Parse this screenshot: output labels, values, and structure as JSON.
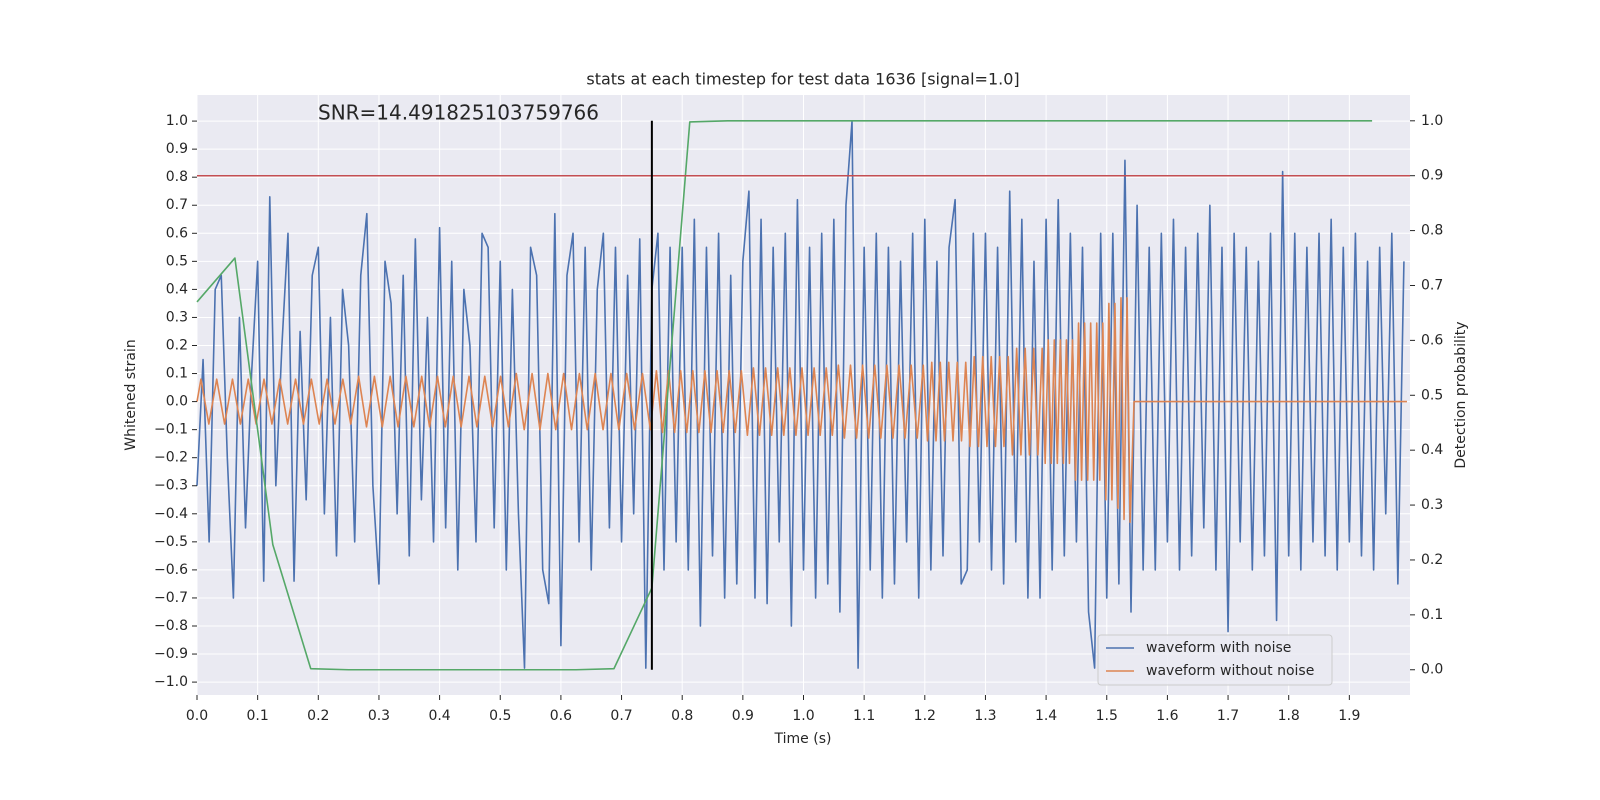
{
  "chart_data": {
    "type": "line",
    "title": "stats at each timestep for test data 1636 [signal=1.0]",
    "annotation": "SNR=14.491825103759766",
    "xlabel": "Time (s)",
    "ylabel": "Whitened strain",
    "y2label": "Detection probability",
    "xlim": [
      0,
      2.0
    ],
    "ylim": [
      -1.046,
      1.093
    ],
    "y2lim": [
      -0.046,
      1.047
    ],
    "xticks": [
      {
        "value": 0,
        "label": "0.0"
      },
      0.1,
      0.2,
      0.3,
      0.4,
      0.5,
      0.6,
      0.7,
      0.8,
      0.9,
      {
        "value": 1,
        "label": "1.0"
      },
      1.1,
      1.2,
      1.3,
      1.4,
      1.5,
      1.6,
      1.7,
      1.8,
      1.9
    ],
    "yticks": [
      {
        "value": -1,
        "label": "−1.0"
      },
      {
        "value": -0.9,
        "label": "−0.9"
      },
      {
        "value": -0.8,
        "label": "−0.8"
      },
      {
        "value": -0.7,
        "label": "−0.7"
      },
      {
        "value": -0.6,
        "label": "−0.6"
      },
      {
        "value": -0.5,
        "label": "−0.5"
      },
      {
        "value": -0.4,
        "label": "−0.4"
      },
      {
        "value": -0.3,
        "label": "−0.3"
      },
      {
        "value": -0.2,
        "label": "−0.2"
      },
      {
        "value": -0.1,
        "label": "−0.1"
      },
      {
        "value": 0,
        "label": "0.0"
      },
      0.1,
      0.2,
      0.3,
      0.4,
      0.5,
      0.6,
      0.7,
      0.8,
      0.9,
      {
        "value": 1,
        "label": "1.0"
      }
    ],
    "y2ticks": [
      {
        "value": 0,
        "label": "0.0"
      },
      0.1,
      0.2,
      0.3,
      0.4,
      0.5,
      0.6,
      0.7,
      0.8,
      0.9,
      {
        "value": 1,
        "label": "1.0"
      }
    ],
    "grid": true,
    "legend": "lower right",
    "series": [
      {
        "name": "waveform with noise",
        "color": "#4c72b0",
        "x": [
          0,
          0.01,
          0.02,
          0.03,
          0.04,
          0.05,
          0.06,
          0.07,
          0.08,
          0.09,
          0.1,
          0.11,
          0.12,
          0.13,
          0.14,
          0.15,
          0.16,
          0.17,
          0.18,
          0.19,
          0.2,
          0.21,
          0.22,
          0.23,
          0.24,
          0.25,
          0.26,
          0.27,
          0.28,
          0.29,
          0.3,
          0.31,
          0.32,
          0.33,
          0.34,
          0.35,
          0.36,
          0.37,
          0.38,
          0.39,
          0.4,
          0.41,
          0.42,
          0.43,
          0.44,
          0.45,
          0.46,
          0.47,
          0.48,
          0.49,
          0.5,
          0.51,
          0.52,
          0.53,
          0.54,
          0.55,
          0.56,
          0.57,
          0.58,
          0.59,
          0.6,
          0.61,
          0.62,
          0.63,
          0.64,
          0.65,
          0.66,
          0.67,
          0.68,
          0.69,
          0.7,
          0.71,
          0.72,
          0.73,
          0.74,
          0.75,
          0.76,
          0.77,
          0.78,
          0.79,
          0.8,
          0.81,
          0.82,
          0.83,
          0.84,
          0.85,
          0.86,
          0.87,
          0.88,
          0.89,
          0.9,
          0.91,
          0.92,
          0.93,
          0.94,
          0.95,
          0.96,
          0.97,
          0.98,
          0.99,
          1.0,
          1.01,
          1.02,
          1.03,
          1.04,
          1.05,
          1.06,
          1.07,
          1.08,
          1.09,
          1.1,
          1.11,
          1.12,
          1.13,
          1.14,
          1.15,
          1.16,
          1.17,
          1.18,
          1.19,
          1.2,
          1.21,
          1.22,
          1.23,
          1.24,
          1.25,
          1.26,
          1.27,
          1.28,
          1.29,
          1.3,
          1.31,
          1.32,
          1.33,
          1.34,
          1.35,
          1.36,
          1.37,
          1.38,
          1.39,
          1.4,
          1.41,
          1.42,
          1.43,
          1.44,
          1.45,
          1.46,
          1.47,
          1.48,
          1.49,
          1.5,
          1.51,
          1.52,
          1.53,
          1.54,
          1.55,
          1.56,
          1.57,
          1.58,
          1.59,
          1.6,
          1.61,
          1.62,
          1.63,
          1.64,
          1.65,
          1.66,
          1.67,
          1.68,
          1.69,
          1.7,
          1.71,
          1.72,
          1.73,
          1.74,
          1.75,
          1.76,
          1.77,
          1.78,
          1.79,
          1.8,
          1.81,
          1.82,
          1.83,
          1.84,
          1.85,
          1.86,
          1.87,
          1.88,
          1.89,
          1.9,
          1.91,
          1.92,
          1.93,
          1.94,
          1.95,
          1.96,
          1.97,
          1.98,
          1.99
        ],
        "values": [
          -0.3,
          0.15,
          -0.5,
          0.4,
          0.45,
          -0.2,
          -0.7,
          0.3,
          -0.45,
          0.1,
          0.5,
          -0.64,
          0.73,
          -0.3,
          0.2,
          0.6,
          -0.64,
          0.25,
          -0.35,
          0.45,
          0.55,
          -0.4,
          0.3,
          -0.55,
          0.4,
          0.2,
          -0.5,
          0.45,
          0.67,
          -0.3,
          -0.65,
          0.5,
          0.35,
          -0.4,
          0.45,
          -0.55,
          0.58,
          -0.35,
          0.3,
          -0.5,
          0.62,
          -0.45,
          0.5,
          -0.6,
          0.4,
          0.2,
          -0.5,
          0.6,
          0.55,
          -0.45,
          0.5,
          -0.6,
          0.4,
          -0.4,
          -0.95,
          0.55,
          0.45,
          -0.6,
          -0.72,
          0.67,
          -0.87,
          0.45,
          0.6,
          -0.5,
          0.55,
          -0.6,
          0.4,
          0.6,
          -0.45,
          0.55,
          -0.5,
          0.45,
          -0.4,
          0.58,
          -0.95,
          0.4,
          0.6,
          -0.6,
          0.55,
          -0.5,
          0.55,
          -0.6,
          0.65,
          -0.8,
          0.55,
          -0.55,
          0.6,
          -0.7,
          0.45,
          -0.65,
          0.5,
          0.75,
          -0.7,
          0.65,
          -0.72,
          0.55,
          -0.5,
          0.6,
          -0.8,
          0.72,
          -0.6,
          0.55,
          -0.7,
          0.6,
          -0.65,
          0.65,
          -0.75,
          0.7,
          1.0,
          -0.95,
          0.55,
          -0.6,
          0.6,
          -0.7,
          0.55,
          -0.65,
          0.5,
          -0.5,
          0.6,
          -0.7,
          0.65,
          -0.6,
          0.5,
          -0.55,
          0.55,
          0.72,
          -0.65,
          -0.6,
          0.6,
          -0.5,
          0.6,
          -0.6,
          0.55,
          -0.65,
          0.75,
          -0.5,
          0.65,
          -0.7,
          0.5,
          -0.7,
          0.65,
          -0.6,
          0.72,
          -0.55,
          0.6,
          -0.5,
          0.55,
          -0.75,
          -0.95,
          0.6,
          -0.7,
          0.6,
          -0.65,
          0.86,
          -0.75,
          0.7,
          -0.6,
          0.55,
          -0.6,
          0.6,
          -0.5,
          0.65,
          -0.6,
          0.55,
          -0.55,
          0.6,
          -0.45,
          0.7,
          -0.6,
          0.55,
          -0.82,
          0.6,
          -0.5,
          0.55,
          -0.6,
          0.5,
          -0.55,
          0.6,
          -0.78,
          0.82,
          -0.55,
          0.6,
          -0.6,
          0.55,
          -0.5,
          0.6,
          -0.55,
          0.65,
          -0.6,
          0.55,
          -0.5,
          0.6,
          -0.55,
          0.5,
          -0.6,
          0.55,
          -0.4,
          0.6,
          -0.65,
          0.5
        ]
      },
      {
        "name": "waveform without noise",
        "color": "#dd8452",
        "x": [
          0,
          0.0065,
          0.0195,
          0.0325,
          0.0455,
          0.0585,
          0.0715,
          0.0845,
          0.0975,
          0.1105,
          0.1235,
          0.1365,
          0.1495,
          0.1625,
          0.1755,
          0.1885,
          0.2015,
          0.2145,
          0.2275,
          0.2405,
          0.2535,
          0.2665,
          0.2795,
          0.2925,
          0.3055,
          0.3185,
          0.3315,
          0.3445,
          0.3575,
          0.3705,
          0.3835,
          0.3965,
          0.4095,
          0.4225,
          0.4355,
          0.4485,
          0.4615,
          0.4745,
          0.4875,
          0.5005,
          0.5135,
          0.5265,
          0.5395,
          0.5525,
          0.5655,
          0.5785,
          0.5915,
          0.6045,
          0.6175,
          0.6305,
          0.6435,
          0.6565,
          0.6695,
          0.6825,
          0.6955,
          0.7085,
          0.7215,
          0.7345,
          0.7475,
          0.7575,
          0.7675,
          0.7775,
          0.7875,
          0.7975,
          0.8075,
          0.8175,
          0.8275,
          0.8375,
          0.8475,
          0.8575,
          0.8675,
          0.8775,
          0.8875,
          0.8975,
          0.9075,
          0.9175,
          0.9275,
          0.9375,
          0.9475,
          0.9575,
          0.9675,
          0.9775,
          0.9875,
          0.9975,
          1.0075,
          1.0175,
          1.0275,
          1.0375,
          1.0475,
          1.0575,
          1.0675,
          1.0775,
          1.0875,
          1.0975,
          1.1075,
          1.1175,
          1.1275,
          1.1375,
          1.1475,
          1.1575,
          1.1675,
          1.1775,
          1.1875,
          1.1975,
          1.2045,
          1.2115,
          1.2185,
          1.2255,
          1.2325,
          1.2395,
          1.2465,
          1.2535,
          1.2605,
          1.2675,
          1.2745,
          1.2815,
          1.2885,
          1.2955,
          1.3025,
          1.3095,
          1.3165,
          1.3235,
          1.3305,
          1.3375,
          1.3445,
          1.3515,
          1.3585,
          1.3655,
          1.3725,
          1.3795,
          1.3865,
          1.3935,
          1.3985,
          1.4035,
          1.4085,
          1.4135,
          1.4185,
          1.4235,
          1.4285,
          1.4335,
          1.4385,
          1.4435,
          1.4485,
          1.4535,
          1.4585,
          1.4635,
          1.4685,
          1.4735,
          1.4785,
          1.4835,
          1.4885,
          1.4935,
          1.4985,
          1.5035,
          1.5085,
          1.5135,
          1.5185,
          1.5235,
          1.5285,
          1.5335,
          1.5385,
          1.545,
          1.995
        ],
        "values": [
          0,
          0.08,
          -0.08,
          0.08,
          -0.08,
          0.08,
          -0.08,
          0.08,
          -0.08,
          0.08,
          -0.08,
          0.08,
          -0.08,
          0.08,
          -0.08,
          0.08,
          -0.08,
          0.08,
          -0.08,
          0.08,
          -0.08,
          0.09,
          -0.09,
          0.09,
          -0.09,
          0.09,
          -0.09,
          0.09,
          -0.09,
          0.09,
          -0.09,
          0.09,
          -0.09,
          0.09,
          -0.09,
          0.09,
          -0.09,
          0.09,
          -0.09,
          0.09,
          -0.09,
          0.1,
          -0.1,
          0.1,
          -0.1,
          0.1,
          -0.1,
          0.1,
          -0.1,
          0.1,
          -0.1,
          0.1,
          -0.1,
          0.1,
          -0.1,
          0.1,
          -0.1,
          0.1,
          -0.1,
          0.11,
          -0.11,
          0.11,
          -0.11,
          0.11,
          -0.11,
          0.11,
          -0.11,
          0.11,
          -0.11,
          0.11,
          -0.11,
          0.11,
          -0.11,
          0.11,
          -0.12,
          0.12,
          -0.12,
          0.12,
          -0.12,
          0.12,
          -0.12,
          0.12,
          -0.12,
          0.12,
          -0.12,
          0.12,
          -0.12,
          0.12,
          -0.12,
          0.13,
          -0.13,
          0.13,
          -0.13,
          0.13,
          -0.13,
          0.13,
          -0.13,
          0.13,
          -0.13,
          0.13,
          -0.13,
          0.13,
          -0.13,
          0.13,
          -0.14,
          0.14,
          -0.14,
          0.14,
          -0.14,
          0.14,
          -0.14,
          0.14,
          -0.14,
          0.14,
          -0.16,
          0.16,
          -0.16,
          0.16,
          -0.16,
          0.16,
          -0.16,
          0.16,
          -0.16,
          0.16,
          -0.19,
          0.19,
          -0.19,
          0.19,
          -0.19,
          0.19,
          -0.19,
          0.19,
          -0.22,
          0.22,
          -0.22,
          0.22,
          -0.22,
          0.22,
          -0.22,
          0.22,
          -0.22,
          0.22,
          -0.28,
          0.28,
          -0.28,
          0.28,
          -0.28,
          0.28,
          -0.28,
          0.28,
          -0.28,
          0.28,
          -0.35,
          0.35,
          -0.35,
          0.35,
          -0.38,
          0.37,
          -0.42,
          0.37,
          -0.43,
          0,
          0
        ]
      },
      {
        "color": "#55a868",
        "axis": "y2",
        "x": [
          0,
          0.0625,
          0.125,
          0.1875,
          0.25,
          0.3125,
          0.375,
          0.4375,
          0.5,
          0.5625,
          0.625,
          0.6875,
          0.75,
          0.8125,
          0.875,
          0.9375,
          1.0,
          1.0625,
          1.125,
          1.1875,
          1.25,
          1.3125,
          1.375,
          1.4375,
          1.5,
          1.5625,
          1.625,
          1.6875,
          1.75,
          1.8125,
          1.875,
          1.9375
        ],
        "values": [
          0.67,
          0.75,
          0.228,
          0.002,
          0,
          0,
          0,
          0,
          0,
          0,
          0,
          0.002,
          0.149,
          0.998,
          1.0,
          1.0,
          1.0,
          1.0,
          1.0,
          1.0,
          1.0,
          1.0,
          1.0,
          1.0,
          1.0,
          1.0,
          1.0,
          1.0,
          1.0,
          1.0,
          1.0,
          1.0
        ]
      }
    ],
    "hlines": [
      {
        "y": 0.9,
        "axis": "y2",
        "color": "#c44e52"
      }
    ],
    "vlines": [
      {
        "x": 0.75,
        "ymin": 0,
        "ymax": 1,
        "axis": "y2",
        "color": "#000000"
      }
    ]
  }
}
